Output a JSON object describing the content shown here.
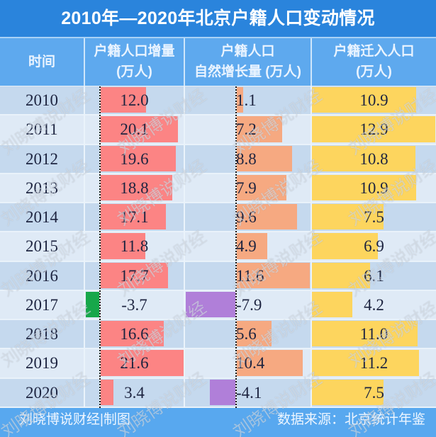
{
  "title": "2010年—2020年北京户籍人口变动情况",
  "header": {
    "col_time": "时间",
    "col_increase": [
      "户籍人口增量",
      "(万人)"
    ],
    "col_natural": [
      "户籍人口",
      "自然增长量 (万人)"
    ],
    "col_migration": [
      "户籍迁入人口",
      "(万人)"
    ]
  },
  "footer": {
    "credit": "刘晓博说财经|制图",
    "source": "数据来源：北京统计年鉴"
  },
  "watermark": {
    "text": "刘晓博说财经"
  },
  "colors": {
    "title_bg": "#2a84dc",
    "header_bg": "#5ea9ee",
    "row_dark": "#c5d9ee",
    "row_light": "#dfeaf6",
    "footer_bg": "#58a8ef"
  },
  "chart_data": {
    "type": "table",
    "title": "2010年—2020年北京户籍人口变动情况",
    "unit": "万人",
    "source": "北京统计年鉴",
    "row_header": "时间",
    "categories": [
      "2010",
      "2011",
      "2012",
      "2013",
      "2014",
      "2015",
      "2016",
      "2017",
      "2018",
      "2019",
      "2020"
    ],
    "series": [
      {
        "name": "户籍人口增量 (万人)",
        "values": [
          12.0,
          20.1,
          19.6,
          18.8,
          17.1,
          11.8,
          17.7,
          -3.7,
          16.6,
          21.6,
          3.4
        ],
        "labels": [
          "12.0",
          "20.1",
          "19.6",
          "18.8",
          "17.1",
          "11.8",
          "17.7",
          "-3.7",
          "16.6",
          "21.6",
          "3.4"
        ],
        "color": "#fc8484",
        "negative_color": "#17a74a"
      },
      {
        "name": "户籍人口自然增长量 (万人)",
        "values": [
          1.1,
          7.2,
          8.8,
          7.9,
          9.6,
          4.9,
          11.6,
          -7.9,
          5.6,
          10.4,
          -4.1
        ],
        "labels": [
          "1.1",
          "7.2",
          "8.8",
          "7.9",
          "9.6",
          "4.9",
          "11.6",
          "-7.9",
          "5.6",
          "10.4",
          "-4.1"
        ],
        "color": "#f6a981",
        "negative_color": "#b07fd9"
      },
      {
        "name": "户籍迁入人口 (万人)",
        "values": [
          10.9,
          12.9,
          10.8,
          10.9,
          7.5,
          6.9,
          6.1,
          4.2,
          11.0,
          11.2,
          7.5
        ],
        "labels": [
          "10.9",
          "12.9",
          "10.8",
          "10.9",
          "7.5",
          "6.9",
          "6.1",
          "4.2",
          "11.0",
          "11.2",
          "7.5"
        ],
        "color": "#fdd55e",
        "negative_color": "#fdd55e"
      }
    ]
  }
}
